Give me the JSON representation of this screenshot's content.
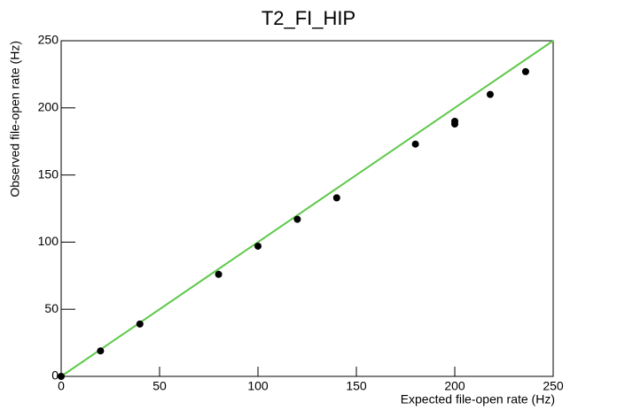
{
  "chart_data": {
    "type": "scatter",
    "title": "T2_FI_HIP",
    "x_label": "Expected file-open rate (Hz)",
    "y_label": "Observed file-open rate (Hz)",
    "x": [
      0,
      20,
      40,
      80,
      100,
      120,
      140,
      180,
      200,
      200,
      218,
      236
    ],
    "values": [
      0,
      19,
      39,
      76,
      97,
      117,
      133,
      173,
      188,
      190,
      210,
      227
    ],
    "color": "#000000",
    "fit": {
      "x": [
        0,
        250
      ],
      "y": [
        0,
        250
      ],
      "color": "#5ec94a"
    },
    "xlim": [
      0,
      250
    ],
    "ylim": [
      0,
      250
    ],
    "xticks": [
      0,
      50,
      100,
      150,
      200,
      250
    ],
    "yticks": [
      0,
      50,
      100,
      150,
      200,
      250
    ]
  }
}
